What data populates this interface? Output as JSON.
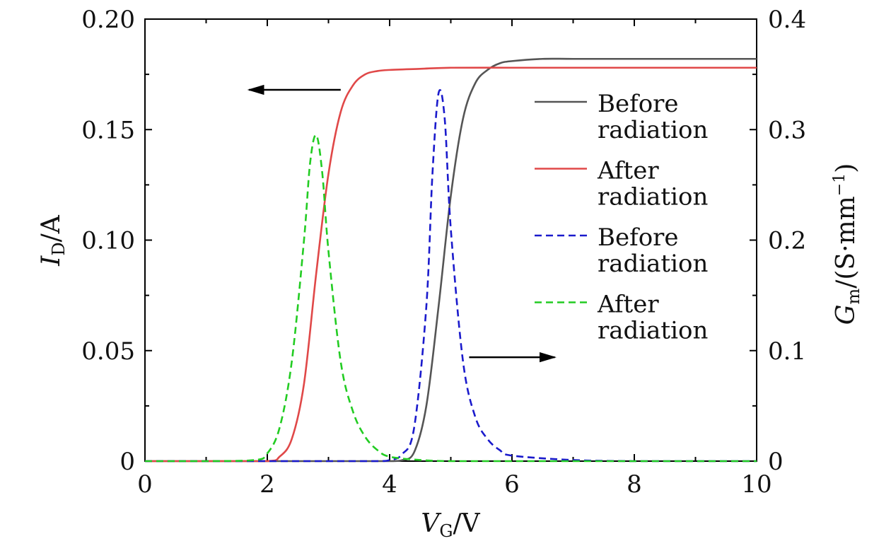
{
  "chart_data": {
    "type": "line",
    "x_axis": {
      "label_var": "V",
      "label_sub": "G",
      "label_unit": "/V",
      "range": [
        0,
        10
      ],
      "ticks": [
        "0",
        "2",
        "4",
        "6",
        "8",
        "10"
      ]
    },
    "y_left": {
      "label_var": "I",
      "label_sub": "D",
      "label_unit": "/A",
      "range": [
        0,
        0.2
      ],
      "ticks": [
        "0",
        "0.05",
        "0.10",
        "0.15",
        "0.20"
      ]
    },
    "y_right": {
      "label_var": "G",
      "label_sub": "m",
      "label_unit": "/(S·mm",
      "label_exp": "−1",
      "label_close": ")",
      "range": [
        0,
        0.4
      ],
      "ticks": [
        "0",
        "0.1",
        "0.2",
        "0.3",
        "0.4"
      ]
    },
    "series": [
      {
        "name": "Before radiation",
        "axis": "left",
        "style": "solid",
        "color": "#555555",
        "x": [
          0,
          1,
          2,
          3,
          4,
          4.2,
          4.4,
          4.6,
          4.8,
          5.0,
          5.2,
          5.4,
          5.6,
          5.8,
          6.0,
          6.5,
          7,
          8,
          9,
          10
        ],
        "y": [
          0,
          0,
          0,
          0,
          0,
          0.0004,
          0.004,
          0.025,
          0.07,
          0.12,
          0.155,
          0.171,
          0.177,
          0.18,
          0.181,
          0.182,
          0.182,
          0.182,
          0.182,
          0.182
        ]
      },
      {
        "name": "After radiation",
        "axis": "left",
        "style": "solid",
        "color": "#e04848",
        "x": [
          0,
          1,
          2,
          2.2,
          2.4,
          2.6,
          2.8,
          3.0,
          3.2,
          3.4,
          3.6,
          3.8,
          4.0,
          4.5,
          5,
          6,
          7,
          8,
          9,
          10
        ],
        "y": [
          0,
          0,
          0,
          0.002,
          0.01,
          0.035,
          0.085,
          0.13,
          0.158,
          0.17,
          0.175,
          0.1765,
          0.177,
          0.1775,
          0.178,
          0.178,
          0.178,
          0.178,
          0.178,
          0.178
        ]
      },
      {
        "name": "Before radiation",
        "axis": "right",
        "style": "dashed",
        "color": "#1a1acc",
        "x": [
          0,
          1,
          2,
          3,
          3.8,
          4.0,
          4.2,
          4.4,
          4.6,
          4.7,
          4.8,
          4.9,
          5.0,
          5.2,
          5.4,
          5.6,
          5.8,
          6.0,
          7,
          8,
          9,
          10
        ],
        "y": [
          0,
          0,
          0,
          0,
          0,
          0.001,
          0.006,
          0.03,
          0.14,
          0.26,
          0.333,
          0.31,
          0.21,
          0.09,
          0.04,
          0.02,
          0.01,
          0.005,
          0.001,
          0,
          0,
          0
        ]
      },
      {
        "name": "After radiation",
        "axis": "right",
        "style": "dashed",
        "color": "#22cc22",
        "x": [
          0,
          1,
          1.8,
          2.0,
          2.2,
          2.4,
          2.6,
          2.7,
          2.8,
          2.9,
          3.0,
          3.2,
          3.4,
          3.6,
          3.8,
          4.0,
          4.5,
          5,
          6,
          8,
          10
        ],
        "y": [
          0,
          0,
          0.001,
          0.007,
          0.03,
          0.09,
          0.2,
          0.27,
          0.295,
          0.26,
          0.19,
          0.09,
          0.045,
          0.022,
          0.01,
          0.004,
          0.001,
          0,
          0,
          0,
          0
        ]
      }
    ],
    "legend": [
      {
        "line1": "Before",
        "line2": "radiation",
        "style": "solid",
        "color": "#555555"
      },
      {
        "line1": "After",
        "line2": "radiation",
        "style": "solid",
        "color": "#e04848"
      },
      {
        "line1": "Before",
        "line2": "radiation",
        "style": "dashed",
        "color": "#1a1acc"
      },
      {
        "line1": "After",
        "line2": "radiation",
        "style": "dashed",
        "color": "#22cc22"
      }
    ],
    "annotations": [
      {
        "name": "left-axis-arrow",
        "points_to": "left",
        "from": [
          3.2,
          0.168
        ],
        "to": [
          1.7,
          0.168
        ]
      },
      {
        "name": "right-axis-arrow",
        "points_to": "right",
        "from": [
          5.3,
          0.047
        ],
        "to": [
          6.7,
          0.047
        ]
      }
    ]
  }
}
